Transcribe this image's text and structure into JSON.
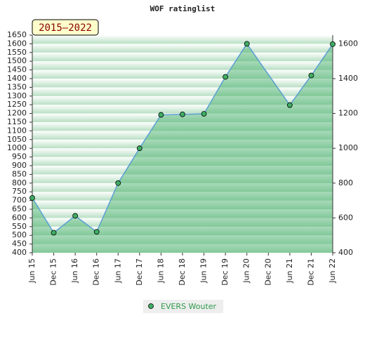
{
  "chart_data": {
    "type": "line",
    "title": "WOF ratinglist",
    "subtitle": "2015–2022",
    "xlim": [
      2015.42,
      2022.42
    ],
    "xticks": [
      {
        "value": 2015.42,
        "label": "Jun 15"
      },
      {
        "value": 2015.92,
        "label": "Dec 15"
      },
      {
        "value": 2016.42,
        "label": "Jun 16"
      },
      {
        "value": 2016.92,
        "label": "Dec 16"
      },
      {
        "value": 2017.42,
        "label": "Jun 17"
      },
      {
        "value": 2017.92,
        "label": "Dec 17"
      },
      {
        "value": 2018.42,
        "label": "Jun 18"
      },
      {
        "value": 2018.92,
        "label": "Dec 18"
      },
      {
        "value": 2019.42,
        "label": "Jun 19"
      },
      {
        "value": 2019.92,
        "label": "Dec 19"
      },
      {
        "value": 2020.42,
        "label": "Jun 20"
      },
      {
        "value": 2020.92,
        "label": "Dec 20"
      },
      {
        "value": 2021.42,
        "label": "Jun 21"
      },
      {
        "value": 2021.92,
        "label": "Dec 21"
      },
      {
        "value": 2022.42,
        "label": "Jun 22"
      }
    ],
    "ylim": [
      400,
      1650
    ],
    "yticks": [
      400,
      450,
      500,
      550,
      600,
      650,
      700,
      750,
      800,
      850,
      900,
      950,
      1000,
      1050,
      1100,
      1150,
      1200,
      1250,
      1300,
      1350,
      1400,
      1450,
      1500,
      1550,
      1600,
      1650
    ],
    "y2lim": [
      400,
      1650
    ],
    "y2ticks": [
      400,
      600,
      800,
      1000,
      1200,
      1400,
      1600
    ],
    "series": [
      {
        "name": "EVERS Wouter",
        "color": "#5a9fd4",
        "x": [
          2015.42,
          2015.92,
          2016.42,
          2016.92,
          2017.42,
          2017.92,
          2018.42,
          2018.92,
          2019.42,
          2019.92,
          2020.42,
          2021.42,
          2021.92,
          2022.42
        ],
        "values": [
          715,
          515,
          612,
          520,
          800,
          1000,
          1192,
          1195,
          1198,
          1410,
          1600,
          1248,
          1418,
          1598
        ]
      }
    ]
  }
}
